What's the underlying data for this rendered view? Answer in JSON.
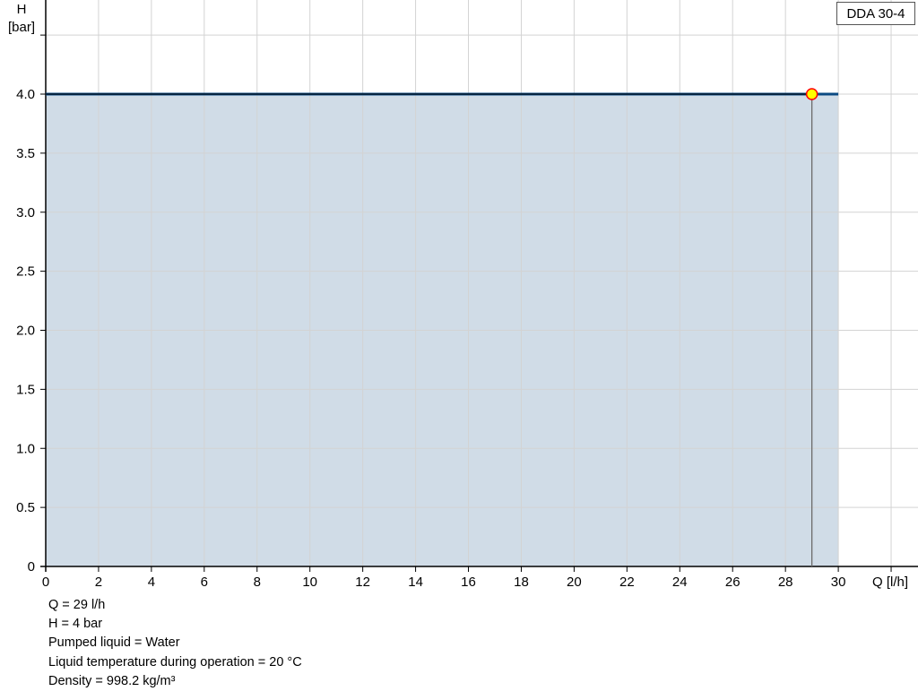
{
  "chart_data": {
    "type": "area",
    "title": "",
    "xlabel": "Q [l/h]",
    "ylabel_line1": "H",
    "ylabel_line2": "[bar]",
    "xlim": [
      0,
      33
    ],
    "ylim": [
      0,
      4.8
    ],
    "xticks": [
      0,
      2,
      4,
      6,
      8,
      10,
      12,
      14,
      16,
      18,
      20,
      22,
      24,
      26,
      28,
      30
    ],
    "yticks": [
      0,
      0.5,
      1.0,
      1.5,
      2.0,
      2.5,
      3.0,
      3.5,
      4.0
    ],
    "ytick_labels": [
      "0",
      "0.5",
      "1.0",
      "1.5",
      "2.0",
      "2.5",
      "3.0",
      "3.5",
      "4.0"
    ],
    "grid": true,
    "series": [
      {
        "name": "DDA 30-4",
        "x": [
          0,
          30
        ],
        "y": [
          4.0,
          4.0
        ],
        "color": "#0b4a82",
        "fill": "#d0dce7"
      }
    ],
    "duty_point": {
      "x": 29,
      "y": 4,
      "fill": "#ffff00",
      "stroke": "#ff0000"
    },
    "legend": {
      "label": "DDA 30-4",
      "placement": "top-right"
    }
  },
  "info": {
    "lines": [
      "Q = 29 l/h",
      "H = 4 bar",
      "Pumped liquid = Water",
      "Liquid temperature during operation = 20 °C",
      "Density = 998.2 kg/m³"
    ]
  }
}
